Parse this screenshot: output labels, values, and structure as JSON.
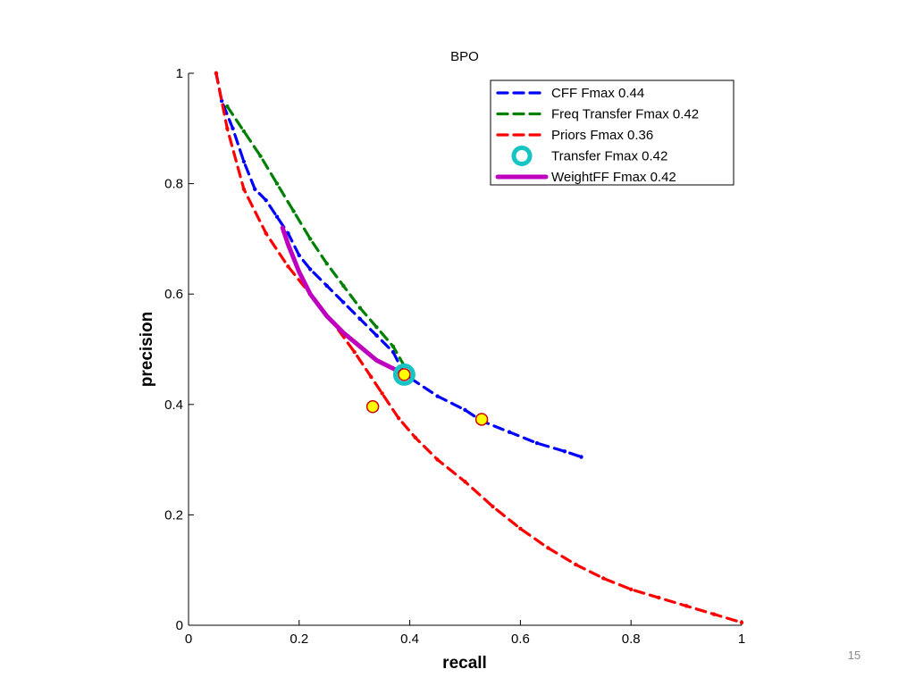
{
  "slide_number": "15",
  "chart_data": {
    "type": "line",
    "title": "BPO",
    "xlabel": "recall",
    "ylabel": "precision",
    "xlim": [
      0,
      1
    ],
    "ylim": [
      0,
      1
    ],
    "x_ticks": [
      0,
      0.2,
      0.4,
      0.6,
      0.8,
      1
    ],
    "y_ticks": [
      0,
      0.2,
      0.4,
      0.6,
      0.8,
      1
    ],
    "x_tick_labels": [
      "0",
      "0.2",
      "0.4",
      "0.6",
      "0.8",
      "1"
    ],
    "y_tick_labels": [
      "0",
      "0.2",
      "0.4",
      "0.6",
      "0.8",
      "1"
    ],
    "grid": false,
    "legend_position": "top-right",
    "series": [
      {
        "name": "CFF Fmax 0.44",
        "color": "#0000ff",
        "style": "dashed-dotted",
        "points": [
          [
            0.05,
            1.0
          ],
          [
            0.06,
            0.95
          ],
          [
            0.08,
            0.9
          ],
          [
            0.1,
            0.84
          ],
          [
            0.12,
            0.79
          ],
          [
            0.14,
            0.77
          ],
          [
            0.16,
            0.74
          ],
          [
            0.18,
            0.71
          ],
          [
            0.2,
            0.67
          ],
          [
            0.22,
            0.645
          ],
          [
            0.25,
            0.615
          ],
          [
            0.28,
            0.585
          ],
          [
            0.31,
            0.555
          ],
          [
            0.34,
            0.525
          ],
          [
            0.37,
            0.495
          ],
          [
            0.39,
            0.455
          ],
          [
            0.45,
            0.415
          ],
          [
            0.5,
            0.39
          ],
          [
            0.53,
            0.37
          ],
          [
            0.58,
            0.35
          ],
          [
            0.63,
            0.33
          ],
          [
            0.68,
            0.315
          ],
          [
            0.71,
            0.305
          ]
        ]
      },
      {
        "name": "Freq Transfer Fmax 0.42",
        "color": "#008000",
        "style": "dashed-dotted",
        "points": [
          [
            0.07,
            0.94
          ],
          [
            0.1,
            0.895
          ],
          [
            0.13,
            0.85
          ],
          [
            0.16,
            0.8
          ],
          [
            0.19,
            0.75
          ],
          [
            0.22,
            0.7
          ],
          [
            0.25,
            0.655
          ],
          [
            0.28,
            0.615
          ],
          [
            0.31,
            0.575
          ],
          [
            0.34,
            0.54
          ],
          [
            0.37,
            0.505
          ],
          [
            0.39,
            0.47
          ]
        ]
      },
      {
        "name": "Priors Fmax 0.36",
        "color": "#ff0000",
        "style": "dashed-dotted",
        "points": [
          [
            0.05,
            1.0
          ],
          [
            0.07,
            0.9
          ],
          [
            0.1,
            0.79
          ],
          [
            0.14,
            0.71
          ],
          [
            0.18,
            0.65
          ],
          [
            0.22,
            0.6
          ],
          [
            0.26,
            0.55
          ],
          [
            0.3,
            0.495
          ],
          [
            0.33,
            0.45
          ],
          [
            0.35,
            0.42
          ],
          [
            0.38,
            0.375
          ],
          [
            0.41,
            0.34
          ],
          [
            0.45,
            0.3
          ],
          [
            0.5,
            0.26
          ],
          [
            0.55,
            0.215
          ],
          [
            0.6,
            0.175
          ],
          [
            0.65,
            0.14
          ],
          [
            0.7,
            0.11
          ],
          [
            0.75,
            0.085
          ],
          [
            0.8,
            0.065
          ],
          [
            0.85,
            0.05
          ],
          [
            0.9,
            0.035
          ],
          [
            0.95,
            0.02
          ],
          [
            1.0,
            0.005
          ]
        ]
      },
      {
        "name": "Transfer Fmax 0.42",
        "color": "#17c4c4",
        "style": "marker",
        "points": [
          [
            0.39,
            0.454
          ]
        ]
      },
      {
        "name": "WeightFF Fmax 0.42",
        "color": "#bf00bf",
        "style": "solid-thick",
        "points": [
          [
            0.17,
            0.72
          ],
          [
            0.18,
            0.69
          ],
          [
            0.2,
            0.64
          ],
          [
            0.22,
            0.6
          ],
          [
            0.25,
            0.56
          ],
          [
            0.28,
            0.53
          ],
          [
            0.31,
            0.505
          ],
          [
            0.34,
            0.48
          ],
          [
            0.37,
            0.465
          ],
          [
            0.39,
            0.455
          ]
        ]
      }
    ],
    "fmax_markers": [
      {
        "x": 0.39,
        "y": 0.454,
        "color": "#ffff00",
        "edge": "#cc0000"
      },
      {
        "x": 0.333,
        "y": 0.396,
        "color": "#ffff00",
        "edge": "#cc0000"
      },
      {
        "x": 0.53,
        "y": 0.373,
        "color": "#ffff00",
        "edge": "#cc0000"
      }
    ]
  }
}
